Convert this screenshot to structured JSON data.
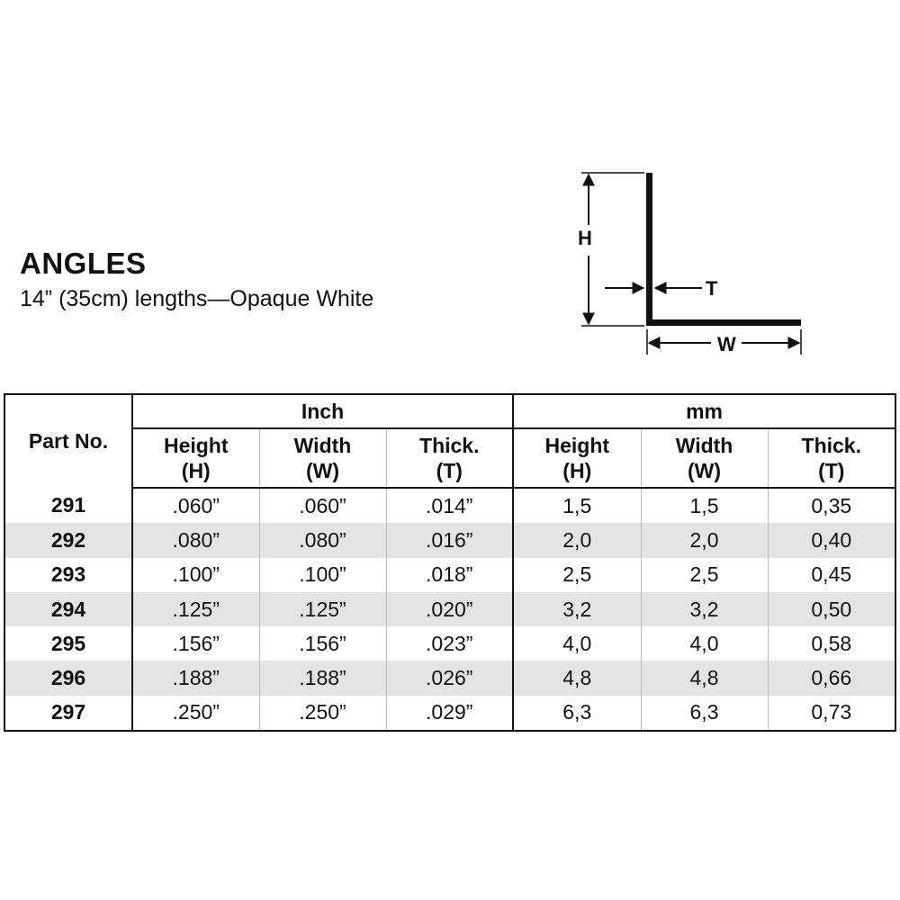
{
  "header": {
    "title": "ANGLES",
    "subtitle": "14” (35cm) lengths—Opaque White"
  },
  "diagram": {
    "label_h": "H",
    "label_t": "T",
    "label_w": "W"
  },
  "table": {
    "part_header": "Part No.",
    "group_inch": "Inch",
    "group_mm": "mm",
    "columns": [
      {
        "line1": "Height",
        "line2": "(H)"
      },
      {
        "line1": "Width",
        "line2": "(W)"
      },
      {
        "line1": "Thick.",
        "line2": "(T)"
      },
      {
        "line1": "Height",
        "line2": "(H)"
      },
      {
        "line1": "Width",
        "line2": "(W)"
      },
      {
        "line1": "Thick.",
        "line2": "(T)"
      }
    ],
    "rows": [
      {
        "part": "291",
        "in_h": ".060”",
        "in_w": ".060”",
        "in_t": ".014”",
        "mm_h": "1,5",
        "mm_w": "1,5",
        "mm_t": "0,35"
      },
      {
        "part": "292",
        "in_h": ".080”",
        "in_w": ".080”",
        "in_t": ".016”",
        "mm_h": "2,0",
        "mm_w": "2,0",
        "mm_t": "0,40"
      },
      {
        "part": "293",
        "in_h": ".100”",
        "in_w": ".100”",
        "in_t": ".018”",
        "mm_h": "2,5",
        "mm_w": "2,5",
        "mm_t": "0,45"
      },
      {
        "part": "294",
        "in_h": ".125”",
        "in_w": ".125”",
        "in_t": ".020”",
        "mm_h": "3,2",
        "mm_w": "3,2",
        "mm_t": "0,50"
      },
      {
        "part": "295",
        "in_h": ".156”",
        "in_w": ".156”",
        "in_t": ".023”",
        "mm_h": "4,0",
        "mm_w": "4,0",
        "mm_t": "0,58"
      },
      {
        "part": "296",
        "in_h": ".188”",
        "in_w": ".188”",
        "in_t": ".026”",
        "mm_h": "4,8",
        "mm_w": "4,8",
        "mm_t": "0,66"
      },
      {
        "part": "297",
        "in_h": ".250”",
        "in_w": ".250”",
        "in_t": ".029”",
        "mm_h": "6,3",
        "mm_w": "6,3",
        "mm_t": "0,73"
      }
    ]
  }
}
